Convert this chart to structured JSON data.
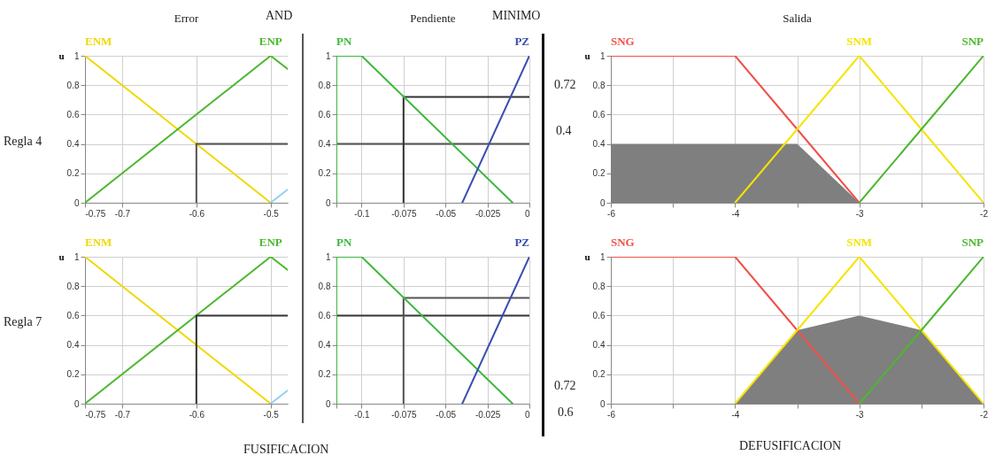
{
  "chart_data": [
    {
      "type": "line",
      "title": "Error",
      "ylabel": "u",
      "xlim": [
        -0.75,
        -0.477
      ],
      "xticks": [
        -0.75,
        -0.7,
        -0.6,
        -0.5
      ],
      "ylim": [
        0,
        1
      ],
      "yticks": [
        0,
        0.2,
        0.4,
        0.6,
        0.8,
        1
      ],
      "grid": true,
      "annotations": [
        "Regla 4",
        "AND"
      ],
      "series": [
        {
          "name": "ENM",
          "color": "#f0d800",
          "x": [
            -0.75,
            -0.5
          ],
          "values": [
            1,
            0
          ]
        },
        {
          "name": "ENP",
          "color": "#4cb82e",
          "x": [
            -0.75,
            -0.5,
            -0.477
          ],
          "values": [
            0,
            1,
            0.91
          ]
        },
        {
          "color": "#8fd3f0",
          "x": [
            -0.5,
            -0.477
          ],
          "values": [
            0,
            0.09
          ]
        },
        {
          "color": "#555555",
          "x": [
            -0.6,
            -0.6,
            -0.477
          ],
          "values": [
            0,
            0.4,
            0.4
          ]
        }
      ]
    },
    {
      "type": "line",
      "title": "Pendiente",
      "xlim": [
        -0.115,
        0
      ],
      "xticks": [
        {
          "value": -0.115,
          "label": null
        },
        -0.1,
        -0.075,
        -0.05,
        -0.025,
        0
      ],
      "ylim": [
        0,
        1
      ],
      "yticks": [
        0,
        0.2,
        0.4,
        0.6,
        0.8,
        1
      ],
      "grid": true,
      "annotations": [
        "MINIMO",
        "0.72",
        "0.4"
      ],
      "series": [
        {
          "color": "#555555",
          "x": [
            -0.115,
            0
          ],
          "values": [
            0.4,
            0.4
          ]
        },
        {
          "color": "#333333",
          "x": [
            -0.075,
            -0.075,
            0
          ],
          "values": [
            0,
            0.72,
            0.72
          ]
        },
        {
          "name": "PN",
          "color": "#3cb83c",
          "x": [
            -0.115,
            -0.115,
            -0.1,
            -0.01
          ],
          "values": [
            0,
            1,
            1,
            0
          ]
        },
        {
          "name": "PZ",
          "color": "#3a4fb0",
          "x": [
            -0.04,
            0
          ],
          "values": [
            0,
            1
          ]
        }
      ]
    },
    {
      "type": "line",
      "title": "Salida",
      "ylabel": "u",
      "categories": [
        "-6",
        null,
        "-4",
        null,
        "-3",
        null,
        "-2"
      ],
      "ylim": [
        0,
        1
      ],
      "yticks": [
        0,
        0.2,
        0.4,
        0.6,
        0.8,
        1
      ],
      "grid": true,
      "series": [
        {
          "type": "area",
          "color": "#7f7f7f",
          "values": [
            0.4,
            0.4,
            0.4,
            0.4,
            0,
            null,
            null
          ]
        },
        {
          "name": "SNG",
          "color": "#f0504a",
          "values": [
            1,
            1,
            1,
            0.5,
            0,
            null,
            null
          ]
        },
        {
          "name": "SNM",
          "color": "#f5e400",
          "values": [
            null,
            null,
            0,
            0.5,
            1,
            0.5,
            0
          ]
        },
        {
          "name": "SNP",
          "color": "#4cb82e",
          "values": [
            null,
            null,
            null,
            null,
            0,
            0.5,
            1
          ]
        }
      ]
    },
    {
      "type": "line",
      "ylabel": "u",
      "xlim": [
        -0.75,
        -0.477
      ],
      "xticks": [
        -0.75,
        -0.7,
        -0.6,
        -0.5
      ],
      "ylim": [
        0,
        1
      ],
      "yticks": [
        0,
        0.2,
        0.4,
        0.6,
        0.8,
        1
      ],
      "grid": true,
      "annotations": [
        "Regla 7"
      ],
      "series": [
        {
          "name": "ENM",
          "color": "#f0d800",
          "x": [
            -0.75,
            -0.5
          ],
          "values": [
            1,
            0
          ]
        },
        {
          "name": "ENP",
          "color": "#4cb82e",
          "x": [
            -0.75,
            -0.5,
            -0.477
          ],
          "values": [
            0,
            1,
            0.91
          ]
        },
        {
          "color": "#8fd3f0",
          "x": [
            -0.5,
            -0.477
          ],
          "values": [
            0,
            0.09
          ]
        },
        {
          "color": "#333333",
          "x": [
            -0.6,
            -0.6,
            -0.477
          ],
          "values": [
            0,
            0.6,
            0.6
          ]
        }
      ]
    },
    {
      "type": "line",
      "xlim": [
        -0.115,
        0
      ],
      "xticks": [
        {
          "value": -0.115,
          "label": null
        },
        -0.1,
        -0.075,
        -0.05,
        -0.025,
        0
      ],
      "ylim": [
        0,
        1
      ],
      "yticks": [
        0,
        0.2,
        0.4,
        0.6,
        0.8,
        1
      ],
      "grid": true,
      "annotations": [
        "FUSIFICACION",
        "0.72",
        "0.6"
      ],
      "series": [
        {
          "color": "#333333",
          "x": [
            -0.115,
            0
          ],
          "values": [
            0.6,
            0.6
          ]
        },
        {
          "color": "#555555",
          "x": [
            -0.075,
            -0.075,
            0
          ],
          "values": [
            0,
            0.72,
            0.72
          ]
        },
        {
          "name": "PN",
          "color": "#3cb83c",
          "x": [
            -0.115,
            -0.115,
            -0.1,
            -0.01
          ],
          "values": [
            0,
            1,
            1,
            0
          ]
        },
        {
          "name": "PZ",
          "color": "#3a4fb0",
          "x": [
            -0.04,
            0
          ],
          "values": [
            0,
            1
          ]
        }
      ]
    },
    {
      "type": "line",
      "ylabel": "u",
      "categories": [
        "-6",
        null,
        "-4",
        null,
        "-3",
        null,
        "-2"
      ],
      "ylim": [
        0,
        1
      ],
      "yticks": [
        0,
        0.2,
        0.4,
        0.6,
        0.8,
        1
      ],
      "grid": true,
      "annotations": [
        "DEFUSIFICACION"
      ],
      "series": [
        {
          "type": "area",
          "color": "#7f7f7f",
          "values": [
            null,
            null,
            0,
            0.5,
            0.6,
            0.5,
            0
          ]
        },
        {
          "name": "SNG",
          "color": "#f0504a",
          "values": [
            1,
            1,
            1,
            0.5,
            0,
            null,
            null
          ]
        },
        {
          "name": "SNM",
          "color": "#f5e400",
          "values": [
            null,
            null,
            0,
            0.5,
            1,
            0.5,
            0
          ]
        },
        {
          "name": "SNP",
          "color": "#4cb82e",
          "values": [
            null,
            null,
            null,
            null,
            0,
            0.5,
            1
          ]
        }
      ]
    }
  ]
}
